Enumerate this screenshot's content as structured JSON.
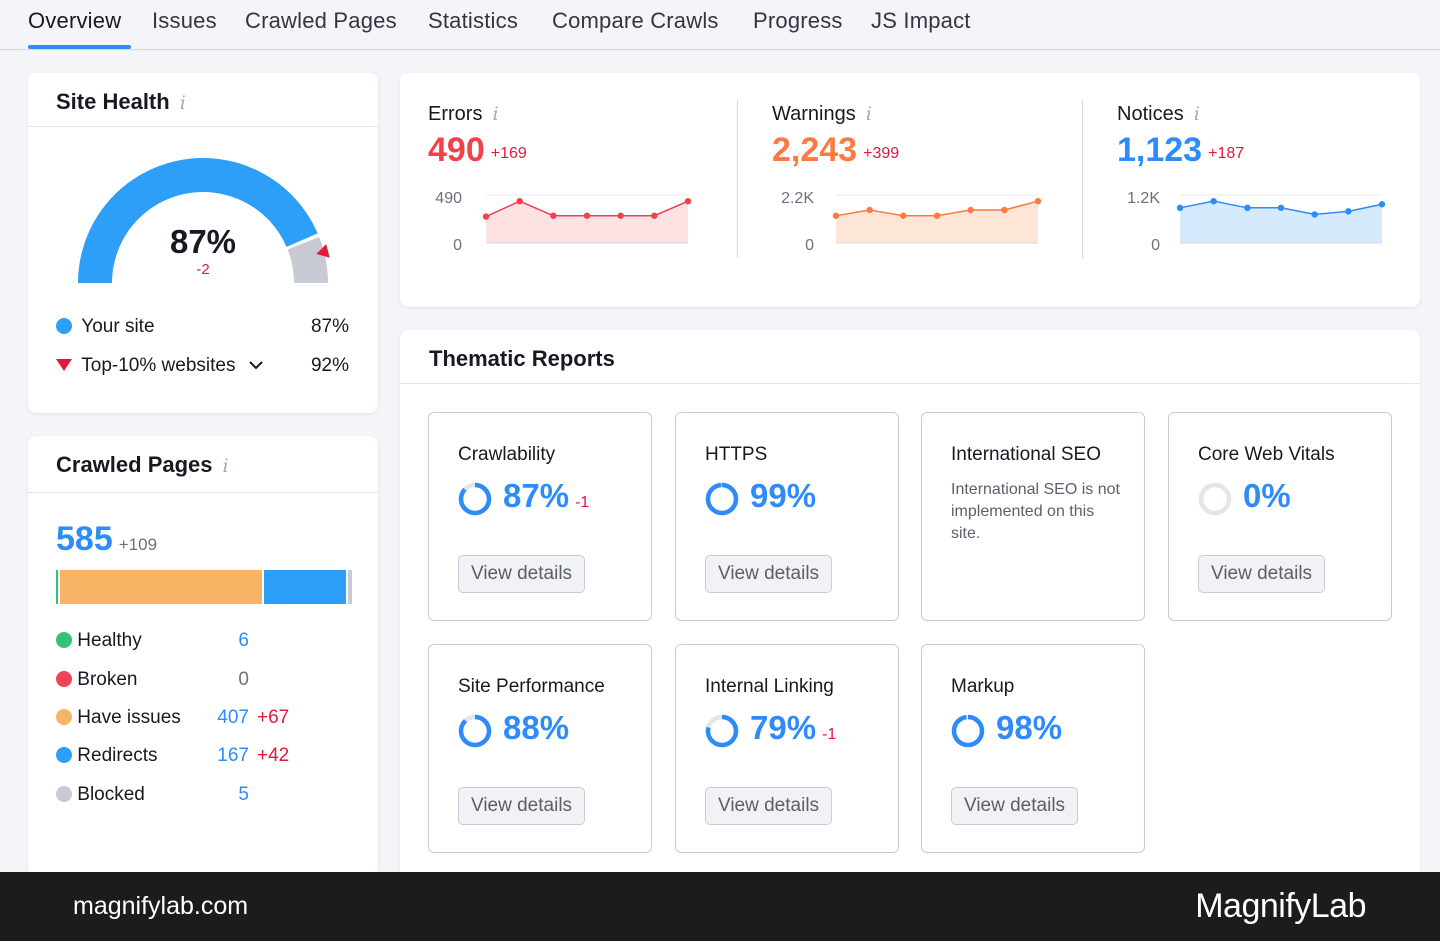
{
  "tabs": [
    "Overview",
    "Issues",
    "Crawled Pages",
    "Statistics",
    "Compare Crawls",
    "Progress",
    "JS Impact"
  ],
  "site_health": {
    "title": "Site Health",
    "info": "i",
    "score": "87%",
    "score_fraction": 0.87,
    "delta": "-2",
    "your_site_label": "Your site",
    "your_site_value": "87%",
    "top10_label": "Top-10% websites",
    "top10_value": "92%",
    "top10_fraction": 0.92
  },
  "crawled_pages": {
    "title": "Crawled Pages",
    "info": "i",
    "total": "585",
    "total_delta": "+109",
    "rows": [
      {
        "label": "Healthy",
        "value": "6",
        "delta": "",
        "color": "#32c17d",
        "count": 6
      },
      {
        "label": "Broken",
        "value": "0",
        "delta": "",
        "color": "#f04456",
        "count": 0
      },
      {
        "label": "Have issues",
        "value": "407",
        "delta": "+67",
        "color": "#f8b465",
        "count": 407
      },
      {
        "label": "Redirects",
        "value": "167",
        "delta": "+42",
        "color": "#2e9ff8",
        "count": 167
      },
      {
        "label": "Blocked",
        "value": "5",
        "delta": "",
        "color": "#c7c9d3",
        "count": 5
      }
    ]
  },
  "issues": {
    "errors": {
      "label": "Errors",
      "info": "i",
      "value": "490",
      "delta": "+169",
      "color": "#f0424b",
      "fill": "#fde1e3",
      "ytop": "490",
      "ybottom": "0",
      "points": [
        0.6,
        0.95,
        0.62,
        0.62,
        0.62,
        0.62,
        0.95
      ]
    },
    "warnings": {
      "label": "Warnings",
      "info": "i",
      "value": "2,243",
      "delta": "+399",
      "color": "#fc7a41",
      "fill": "#fde6d5",
      "ytop": "2.2K",
      "ybottom": "0",
      "points": [
        0.62,
        0.75,
        0.62,
        0.62,
        0.75,
        0.75,
        0.95
      ]
    },
    "notices": {
      "label": "Notices",
      "info": "i",
      "value": "1,123",
      "delta": "+187",
      "color": "#2e8bfa",
      "fill": "#d5ebfd",
      "ytop": "1.2K",
      "ybottom": "0",
      "points": [
        0.8,
        0.95,
        0.8,
        0.8,
        0.65,
        0.72,
        0.88
      ]
    }
  },
  "thematic": {
    "title": "Thematic Reports",
    "view_details": "View details",
    "tiles": [
      {
        "name": "Crawlability",
        "pct": "87%",
        "delta": "-1",
        "fraction": 0.87
      },
      {
        "name": "HTTPS",
        "pct": "99%",
        "delta": "",
        "fraction": 0.99
      },
      {
        "name": "International SEO",
        "note": "International SEO is not implemented on this site."
      },
      {
        "name": "Core Web Vitals",
        "pct": "0%",
        "delta": "",
        "fraction": 0.0
      },
      {
        "name": "Site Performance",
        "pct": "88%",
        "delta": "",
        "fraction": 0.88
      },
      {
        "name": "Internal Linking",
        "pct": "79%",
        "delta": "-1",
        "fraction": 0.79
      },
      {
        "name": "Markup",
        "pct": "98%",
        "delta": "",
        "fraction": 0.98
      }
    ]
  },
  "footer": {
    "domain": "magnifylab.com",
    "brand": "MagnifyLab"
  },
  "colors": {
    "accent": "#2e8bfa",
    "negative": "#e5183c",
    "gauge_bg": "#c7c9d3"
  }
}
